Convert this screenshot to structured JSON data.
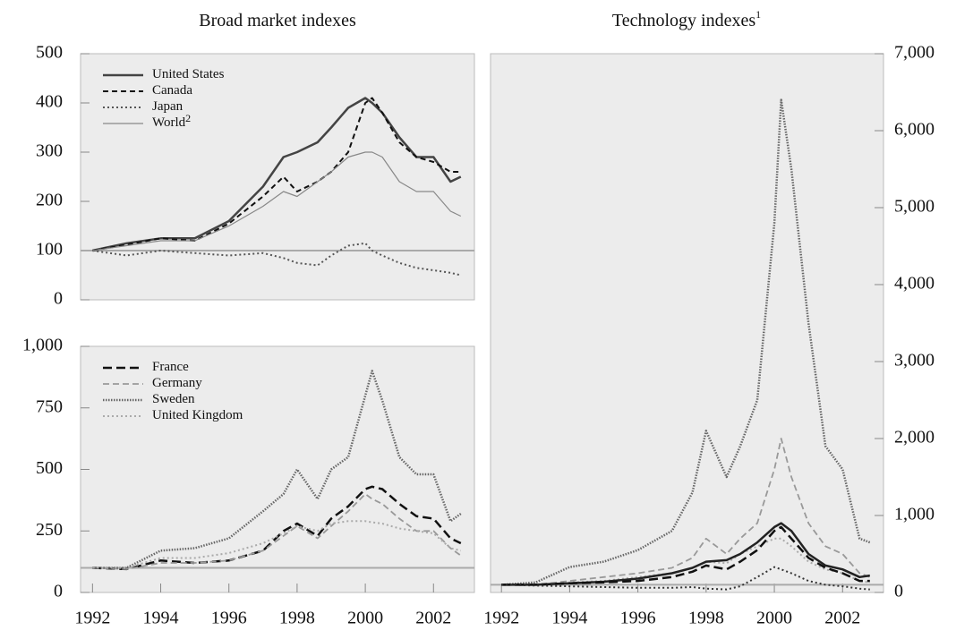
{
  "chart_data": [
    {
      "type": "line",
      "title": "Broad market indexes",
      "x": [
        1992,
        1993,
        1994,
        1995,
        1996,
        1997,
        1997.6,
        1998,
        1998.6,
        1999,
        1999.5,
        2000,
        2000.2,
        2000.5,
        2001,
        2001.5,
        2002,
        2002.5,
        2002.8
      ],
      "series": [
        {
          "name": "United States",
          "color": "#444444",
          "dash": "",
          "width": 2.5,
          "values": [
            100,
            115,
            125,
            125,
            160,
            230,
            290,
            300,
            320,
            350,
            390,
            410,
            400,
            380,
            330,
            290,
            290,
            240,
            250
          ]
        },
        {
          "name": "Canada",
          "color": "#111111",
          "dash": "6 4",
          "width": 2,
          "values": [
            100,
            112,
            125,
            120,
            155,
            210,
            250,
            220,
            240,
            260,
            300,
            400,
            410,
            380,
            320,
            290,
            280,
            260,
            260
          ]
        },
        {
          "name": "Japan",
          "color": "#555555",
          "dash": "2 3",
          "width": 2,
          "values": [
            100,
            90,
            100,
            95,
            90,
            95,
            85,
            75,
            70,
            90,
            110,
            115,
            100,
            90,
            75,
            65,
            60,
            55,
            50
          ]
        },
        {
          "name": "World",
          "name_note": "2",
          "color": "#888888",
          "dash": "",
          "width": 1.2,
          "values": [
            100,
            110,
            120,
            120,
            150,
            190,
            220,
            210,
            240,
            260,
            290,
            300,
            300,
            290,
            240,
            220,
            220,
            180,
            170
          ]
        }
      ],
      "xlim": [
        1991.65,
        2003.2
      ],
      "ylim": [
        0,
        500
      ],
      "yticks": [
        0,
        100,
        200,
        300,
        400,
        500
      ],
      "reference": 100,
      "legend": "top-left"
    },
    {
      "type": "line",
      "x": [
        1992,
        1993,
        1994,
        1995,
        1996,
        1997,
        1997.6,
        1998,
        1998.6,
        1999,
        1999.5,
        2000,
        2000.2,
        2000.5,
        2001,
        2001.5,
        2002,
        2002.5,
        2002.8
      ],
      "series": [
        {
          "name": "France",
          "color": "#111111",
          "dash": "10 5",
          "width": 2.5,
          "values": [
            100,
            95,
            130,
            120,
            130,
            170,
            250,
            280,
            230,
            300,
            350,
            420,
            430,
            420,
            360,
            310,
            300,
            220,
            200
          ]
        },
        {
          "name": "Germany",
          "color": "#999999",
          "dash": "7 4",
          "width": 1.8,
          "values": [
            100,
            95,
            120,
            120,
            130,
            170,
            230,
            270,
            220,
            270,
            330,
            400,
            380,
            360,
            300,
            250,
            250,
            180,
            150
          ]
        },
        {
          "name": "Sweden",
          "color": "#666666",
          "dash": "1.5 1.5",
          "width": 2.5,
          "values": [
            100,
            100,
            170,
            180,
            220,
            330,
            400,
            500,
            380,
            500,
            550,
            800,
            900,
            780,
            550,
            480,
            480,
            290,
            320
          ]
        },
        {
          "name": "United Kingdom",
          "color": "#aaaaaa",
          "dash": "2 3",
          "width": 2,
          "values": [
            100,
            100,
            140,
            140,
            160,
            200,
            240,
            270,
            250,
            280,
            290,
            290,
            285,
            280,
            260,
            250,
            240,
            180,
            170
          ]
        }
      ],
      "xlim": [
        1991.65,
        2003.2
      ],
      "ylim": [
        0,
        1000
      ],
      "yticks": [
        0,
        250,
        500,
        750,
        {
          "value": 1000,
          "label": "1,000"
        }
      ],
      "xticks": [
        1992,
        1994,
        1996,
        1998,
        2000,
        2002
      ],
      "reference": 100,
      "legend": "top-left"
    },
    {
      "type": "line",
      "title": "Technology indexes",
      "title_note": "1",
      "x": [
        1992,
        1993,
        1994,
        1995,
        1996,
        1997,
        1997.6,
        1998,
        1998.6,
        1999,
        1999.5,
        2000,
        2000.2,
        2000.5,
        2001,
        2001.5,
        2002,
        2002.5,
        2002.8
      ],
      "series": [
        {
          "name": "Sweden",
          "color": "#666666",
          "dash": "1.5 1.5",
          "width": 2.5,
          "values": [
            100,
            130,
            330,
            400,
            550,
            800,
            1300,
            2100,
            1500,
            1900,
            2500,
            4800,
            6400,
            5500,
            3500,
            1900,
            1600,
            700,
            650
          ]
        },
        {
          "name": "Germany",
          "color": "#999999",
          "dash": "7 4",
          "width": 1.8,
          "values": [
            100,
            100,
            150,
            200,
            250,
            320,
            450,
            700,
            500,
            700,
            900,
            1600,
            2000,
            1500,
            900,
            600,
            500,
            250,
            200
          ]
        },
        {
          "name": "United Kingdom",
          "color": "#aaaaaa",
          "dash": "2 3",
          "width": 2,
          "values": [
            100,
            100,
            130,
            150,
            200,
            250,
            320,
            400,
            380,
            500,
            600,
            700,
            700,
            600,
            400,
            300,
            250,
            150,
            130
          ]
        },
        {
          "name": "United States",
          "color": "#222222",
          "dash": "",
          "width": 2.5,
          "values": [
            100,
            100,
            120,
            140,
            180,
            250,
            320,
            400,
            420,
            500,
            650,
            850,
            900,
            800,
            500,
            350,
            300,
            200,
            220
          ]
        },
        {
          "name": "France",
          "color": "#111111",
          "dash": "10 5",
          "width": 2.5,
          "values": [
            100,
            100,
            120,
            130,
            150,
            200,
            270,
            350,
            300,
            400,
            550,
            800,
            850,
            700,
            450,
            320,
            250,
            150,
            150
          ]
        },
        {
          "name": "Japan",
          "color": "#333333",
          "dash": "2 3",
          "width": 2,
          "values": [
            100,
            90,
            80,
            70,
            60,
            60,
            70,
            50,
            40,
            80,
            200,
            330,
            300,
            250,
            150,
            100,
            80,
            50,
            40
          ]
        }
      ],
      "xlim": [
        1991.68,
        2003.2
      ],
      "ylim": [
        0,
        7000
      ],
      "yticks": [
        0,
        {
          "value": 1000,
          "label": "1,000"
        },
        {
          "value": 2000,
          "label": "2,000"
        },
        {
          "value": 3000,
          "label": "3,000"
        },
        {
          "value": 4000,
          "label": "4,000"
        },
        {
          "value": 5000,
          "label": "5,000"
        },
        {
          "value": 6000,
          "label": "6,000"
        },
        {
          "value": 7000,
          "label": "7,000"
        }
      ],
      "xticks": [
        1992,
        1994,
        1996,
        1998,
        2000,
        2002
      ],
      "reference": 100,
      "yaxis_side": "right"
    }
  ]
}
